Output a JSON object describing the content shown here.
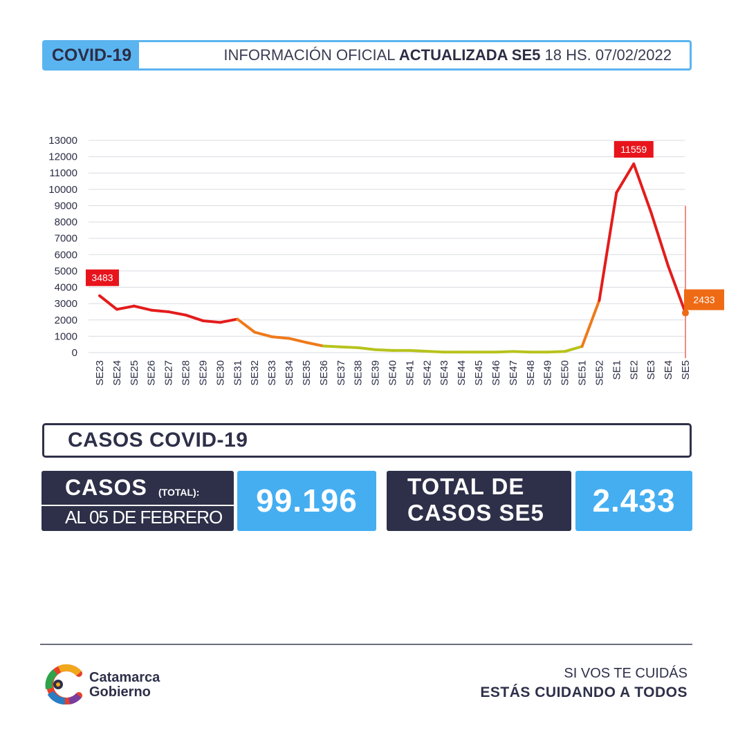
{
  "header": {
    "tag": "COVID-19",
    "info_prefix": "INFORMACIÓN OFICIAL",
    "info_bold": "ACTUALIZADA SE5",
    "info_suffix": "18 HS. 07/02/2022"
  },
  "chart_data": {
    "type": "line",
    "categories": [
      "SE23",
      "SE24",
      "SE25",
      "SE26",
      "SE27",
      "SE28",
      "SE29",
      "SE30",
      "SE31",
      "SE32",
      "SE33",
      "SE34",
      "SE35",
      "SE36",
      "SE37",
      "SE38",
      "SE39",
      "SE40",
      "SE41",
      "SE42",
      "SE43",
      "SE44",
      "SE45",
      "SE46",
      "SE47",
      "SE48",
      "SE49",
      "SE50",
      "SE51",
      "SE52",
      "SE1",
      "SE2",
      "SE3",
      "SE4",
      "SE5"
    ],
    "values": [
      3483,
      2650,
      2850,
      2600,
      2500,
      2300,
      1950,
      1850,
      2050,
      1250,
      970,
      870,
      620,
      400,
      350,
      300,
      180,
      130,
      130,
      80,
      30,
      30,
      30,
      30,
      70,
      30,
      30,
      70,
      380,
      3200,
      9800,
      11559,
      8600,
      5300,
      2433
    ],
    "y_ticks": [
      0,
      1000,
      2000,
      3000,
      4000,
      5000,
      6000,
      7000,
      8000,
      9000,
      10000,
      11000,
      12000,
      13000
    ],
    "ylim": [
      0,
      13000
    ],
    "annotations": [
      {
        "label": "3483",
        "index": 0,
        "color": "#e8141c"
      },
      {
        "label": "11559",
        "index": 31,
        "color": "#e8141c"
      },
      {
        "label": "2433",
        "index": 34,
        "color": "#ee6a14"
      }
    ],
    "grid": true,
    "colors": {
      "high": "#e41c1c",
      "mid": "#ee7a1a",
      "low": "#b7c31c"
    }
  },
  "casos": {
    "section_title": "CASOS COVID-19",
    "total_label": "CASOS",
    "total_sub": "(TOTAL):",
    "total_date": "AL 05 DE FEBRERO",
    "total_value": "99.196",
    "week_label_line1": "TOTAL DE",
    "week_label_line2": "CASOS SE5",
    "week_value": "2.433"
  },
  "footer": {
    "logo_line1": "Catamarca",
    "logo_line2": "Gobierno",
    "slogan_line1": "SI VOS TE CUIDÁS",
    "slogan_line2": "ESTÁS CUIDANDO A TODOS"
  }
}
